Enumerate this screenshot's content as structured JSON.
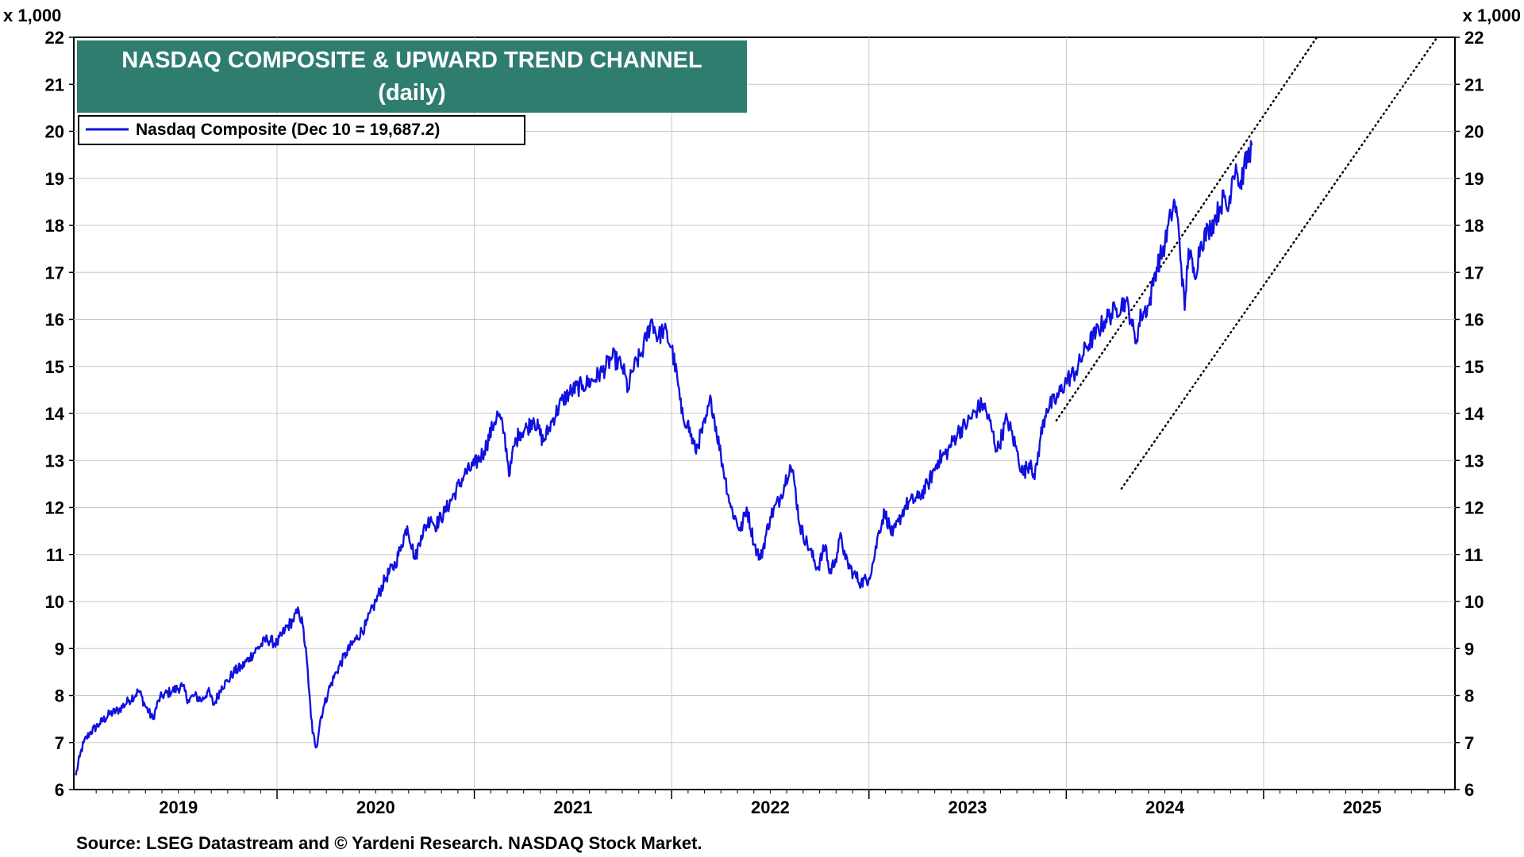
{
  "chart_data": {
    "type": "line",
    "title": "NASDAQ COMPOSITE & UPWARD TREND CHANNEL",
    "subtitle": "(daily)",
    "title_box_color": "#2e7d6e",
    "y_unit_left": "x 1,000",
    "y_unit_right": "x 1,000",
    "ylim": [
      6,
      22
    ],
    "y_ticks": [
      6,
      7,
      8,
      9,
      10,
      11,
      12,
      13,
      14,
      15,
      16,
      17,
      18,
      19,
      20,
      21,
      22
    ],
    "xlim": [
      2018.97,
      2025.97
    ],
    "year_labels": [
      "2019",
      "2020",
      "2021",
      "2022",
      "2023",
      "2024",
      "2025"
    ],
    "year_label_positions": [
      2019.5,
      2020.5,
      2021.5,
      2022.5,
      2023.5,
      2024.5,
      2025.5
    ],
    "year_boundaries": [
      2020,
      2021,
      2022,
      2023,
      2024,
      2025
    ],
    "grid": true,
    "legend_position": "top-left",
    "source": "Source: LSEG Datastream and © Yardeni Research. NASDAQ Stock Market.",
    "series": [
      {
        "name": "Nasdaq Composite  (Dec 10 = 19,687.2)",
        "color": "#1010e0",
        "x": [
          2018.98,
          2019.0,
          2019.02,
          2019.05,
          2019.1,
          2019.15,
          2019.2,
          2019.25,
          2019.3,
          2019.33,
          2019.37,
          2019.4,
          2019.42,
          2019.47,
          2019.52,
          2019.55,
          2019.58,
          2019.62,
          2019.65,
          2019.68,
          2019.72,
          2019.75,
          2019.78,
          2019.82,
          2019.86,
          2019.9,
          2019.95,
          2020.0,
          2020.04,
          2020.08,
          2020.11,
          2020.13,
          2020.15,
          2020.16,
          2020.18,
          2020.2,
          2020.22,
          2020.24,
          2020.26,
          2020.3,
          2020.35,
          2020.4,
          2020.45,
          2020.5,
          2020.55,
          2020.6,
          2020.63,
          2020.66,
          2020.7,
          2020.73,
          2020.78,
          2020.8,
          2020.85,
          2020.9,
          2020.95,
          2021.0,
          2021.05,
          2021.1,
          2021.12,
          2021.15,
          2021.18,
          2021.2,
          2021.23,
          2021.27,
          2021.3,
          2021.35,
          2021.38,
          2021.4,
          2021.45,
          2021.5,
          2021.55,
          2021.6,
          2021.65,
          2021.7,
          2021.75,
          2021.78,
          2021.8,
          2021.85,
          2021.87,
          2021.9,
          2021.93,
          2021.96,
          2022.0,
          2022.03,
          2022.05,
          2022.08,
          2022.12,
          2022.17,
          2022.2,
          2022.25,
          2022.3,
          2022.35,
          2022.38,
          2022.42,
          2022.45,
          2022.5,
          2022.55,
          2022.6,
          2022.62,
          2022.65,
          2022.7,
          2022.74,
          2022.78,
          2022.8,
          2022.83,
          2022.86,
          2022.88,
          2022.92,
          2022.96,
          2023.0,
          2023.03,
          2023.05,
          2023.08,
          2023.12,
          2023.15,
          2023.18,
          2023.2,
          2023.25,
          2023.3,
          2023.35,
          2023.4,
          2023.45,
          2023.5,
          2023.55,
          2023.58,
          2023.62,
          2023.65,
          2023.7,
          2023.75,
          2023.78,
          2023.82,
          2023.84,
          2023.87,
          2023.9,
          2023.95,
          2024.0,
          2024.05,
          2024.1,
          2024.15,
          2024.2,
          2024.25,
          2024.3,
          2024.33,
          2024.35,
          2024.38,
          2024.42,
          2024.45,
          2024.5,
          2024.53,
          2024.55,
          2024.57,
          2024.6,
          2024.62,
          2024.65,
          2024.68,
          2024.72,
          2024.75,
          2024.78,
          2024.8,
          2024.82,
          2024.84,
          2024.86,
          2024.88,
          2024.9,
          2024.94
        ],
        "values": [
          6.3,
          6.7,
          7.0,
          7.2,
          7.4,
          7.6,
          7.7,
          7.9,
          8.1,
          7.8,
          7.5,
          7.9,
          8.0,
          8.1,
          8.2,
          7.9,
          8.0,
          7.9,
          8.1,
          7.8,
          8.2,
          8.3,
          8.5,
          8.6,
          8.8,
          9.0,
          9.2,
          9.1,
          9.4,
          9.6,
          9.8,
          9.5,
          8.8,
          8.2,
          7.2,
          6.9,
          7.5,
          7.8,
          8.1,
          8.5,
          8.9,
          9.2,
          9.5,
          10.0,
          10.5,
          10.8,
          11.2,
          11.6,
          10.9,
          11.4,
          11.8,
          11.6,
          11.9,
          12.3,
          12.7,
          12.9,
          13.2,
          13.8,
          14.0,
          13.6,
          12.7,
          13.3,
          13.6,
          13.7,
          13.9,
          13.4,
          13.7,
          13.9,
          14.3,
          14.5,
          14.6,
          14.7,
          14.9,
          15.2,
          15.0,
          14.5,
          14.9,
          15.3,
          15.6,
          16.0,
          15.6,
          15.8,
          15.4,
          14.7,
          14.0,
          13.8,
          13.2,
          13.8,
          14.3,
          13.1,
          12.0,
          11.5,
          12.0,
          11.2,
          10.9,
          11.8,
          12.2,
          12.9,
          12.6,
          11.6,
          11.1,
          10.7,
          11.2,
          10.6,
          10.9,
          11.4,
          10.9,
          10.6,
          10.4,
          10.5,
          11.0,
          11.5,
          11.9,
          11.4,
          11.7,
          12.0,
          12.1,
          12.2,
          12.5,
          13.0,
          13.2,
          13.6,
          13.8,
          14.1,
          14.2,
          13.7,
          13.2,
          13.9,
          13.2,
          12.7,
          13.0,
          12.6,
          13.5,
          14.1,
          14.3,
          14.7,
          14.9,
          15.4,
          15.7,
          16.0,
          16.2,
          16.4,
          16.0,
          15.5,
          16.1,
          16.3,
          17.0,
          17.6,
          18.2,
          18.5,
          17.9,
          16.2,
          17.5,
          16.9,
          17.6,
          17.9,
          18.1,
          18.4,
          18.6,
          18.3,
          19.0,
          19.3,
          18.8,
          19.2,
          19.7
        ]
      }
    ],
    "trend_channel": {
      "upper": {
        "x": [
          2023.95,
          2025.27
        ],
        "values": [
          13.85,
          22.0
        ]
      },
      "lower": {
        "x": [
          2024.28,
          2025.88
        ],
        "values": [
          12.4,
          22.0
        ]
      }
    }
  }
}
